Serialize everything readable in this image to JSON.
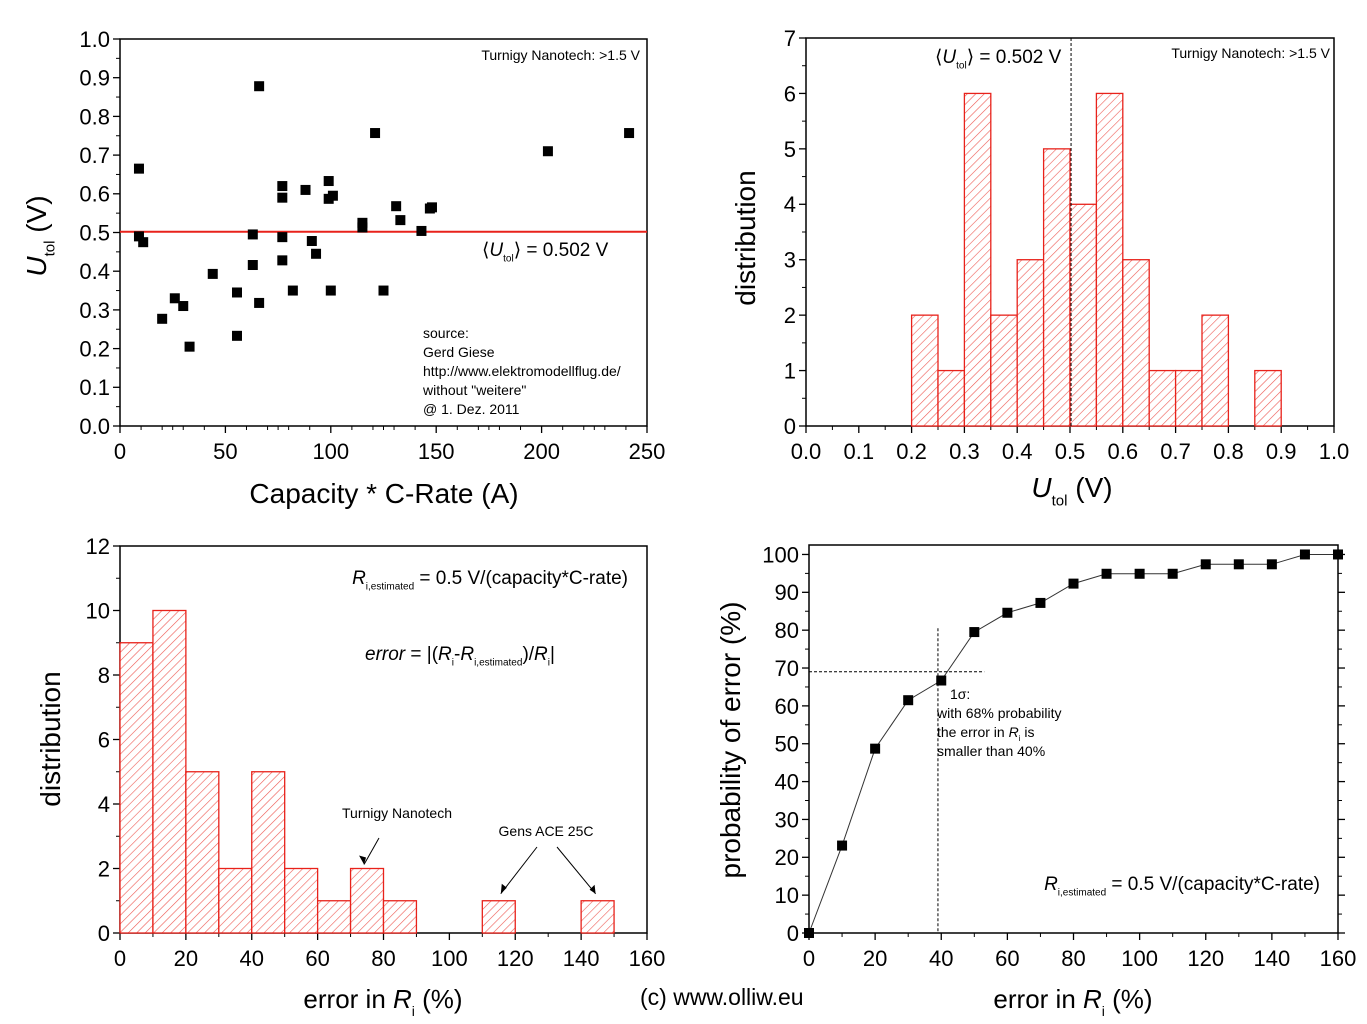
{
  "footer": "(c) www.olliw.eu",
  "chart_data": [
    {
      "id": "scatter",
      "type": "scatter",
      "title": "",
      "xlabel": "Capacity * C-Rate (A)",
      "ylabel_main": "U",
      "ylabel_sub": "tol",
      "ylabel_unit": " (V)",
      "xlim": [
        0,
        250
      ],
      "ylim": [
        0,
        1.0
      ],
      "xticks": [
        0,
        50,
        100,
        150,
        200,
        250
      ],
      "xtick_labels": [
        "0",
        "50",
        "100",
        "150",
        "200",
        "250"
      ],
      "yticks": [
        0,
        0.1,
        0.2,
        0.3,
        0.4,
        0.5,
        0.6,
        0.7,
        0.8,
        0.9,
        1.0
      ],
      "ytick_labels": [
        "0.0",
        "0.1",
        "0.2",
        "0.3",
        "0.4",
        "0.5",
        "0.6",
        "0.7",
        "0.8",
        "0.9",
        "1.0"
      ],
      "mean_line": {
        "value": 0.502,
        "color": "#e8221b"
      },
      "mean_label": {
        "prefix": "⟨",
        "main": "U",
        "sub": "tol",
        "suffix": "⟩ = 0.502 V"
      },
      "note_top_right": "Turnigy Nanotech: >1.5 V",
      "source_lines": [
        "source:",
        "Gerd Giese",
        "http://www.elektromodellflug.de/",
        "without \"weitere\"",
        "@ 1. Dez. 2011"
      ],
      "marker_color": "#000000",
      "points": [
        [
          9,
          0.665
        ],
        [
          9,
          0.49
        ],
        [
          11,
          0.475
        ],
        [
          20,
          0.277
        ],
        [
          26,
          0.33
        ],
        [
          30,
          0.31
        ],
        [
          33,
          0.205
        ],
        [
          44,
          0.393
        ],
        [
          55.5,
          0.345
        ],
        [
          55.5,
          0.233
        ],
        [
          63,
          0.495
        ],
        [
          63,
          0.416
        ],
        [
          66,
          0.318
        ],
        [
          66,
          0.878
        ],
        [
          77,
          0.62
        ],
        [
          77,
          0.59
        ],
        [
          77,
          0.488
        ],
        [
          77,
          0.428
        ],
        [
          82,
          0.35
        ],
        [
          88,
          0.61
        ],
        [
          91,
          0.478
        ],
        [
          93,
          0.445
        ],
        [
          99,
          0.633
        ],
        [
          99,
          0.587
        ],
        [
          101,
          0.595
        ],
        [
          100,
          0.35
        ],
        [
          115,
          0.525
        ],
        [
          115,
          0.513
        ],
        [
          121,
          0.757
        ],
        [
          125,
          0.35
        ],
        [
          131,
          0.568
        ],
        [
          133,
          0.532
        ],
        [
          143,
          0.504
        ],
        [
          147,
          0.562
        ],
        [
          148,
          0.565
        ],
        [
          203,
          0.71
        ],
        [
          241.5,
          0.757
        ]
      ]
    },
    {
      "id": "hist-utol",
      "type": "bar",
      "title": "",
      "xlabel_main": "U",
      "xlabel_sub": "tol",
      "xlabel_unit": " (V)",
      "ylabel": "distribution",
      "xlim": [
        0,
        1.0
      ],
      "ylim": [
        0,
        7
      ],
      "xticks": [
        0,
        0.1,
        0.2,
        0.3,
        0.4,
        0.5,
        0.6,
        0.7,
        0.8,
        0.9,
        1.0
      ],
      "xtick_labels": [
        "0.0",
        "0.1",
        "0.2",
        "0.3",
        "0.4",
        "0.5",
        "0.6",
        "0.7",
        "0.8",
        "0.9",
        "1.0"
      ],
      "yticks": [
        0,
        1,
        2,
        3,
        4,
        5,
        6,
        7
      ],
      "ytick_labels": [
        "0",
        "1",
        "2",
        "3",
        "4",
        "5",
        "6",
        "7"
      ],
      "bin_width": 0.05,
      "bins": [
        [
          0.2,
          2
        ],
        [
          0.25,
          1
        ],
        [
          0.3,
          6
        ],
        [
          0.35,
          2
        ],
        [
          0.4,
          3
        ],
        [
          0.45,
          5
        ],
        [
          0.5,
          4
        ],
        [
          0.55,
          6
        ],
        [
          0.6,
          3
        ],
        [
          0.65,
          1
        ],
        [
          0.7,
          1
        ],
        [
          0.75,
          2
        ],
        [
          0.85,
          1
        ]
      ],
      "bar_color": "#e8221b",
      "mean_line": {
        "value": 0.502,
        "style": "dashed"
      },
      "mean_label": {
        "prefix": "⟨",
        "main": "U",
        "sub": "tol",
        "suffix": "⟩ = 0.502 V"
      },
      "note_top_right": "Turnigy Nanotech: >1.5 V"
    },
    {
      "id": "hist-error",
      "type": "bar",
      "title": "",
      "xlabel_pre": "error in ",
      "xlabel_main": "R",
      "xlabel_sub": "i",
      "xlabel_unit": " (%)",
      "ylabel": "distribution",
      "xlim": [
        0,
        160
      ],
      "ylim": [
        0,
        12
      ],
      "xticks": [
        0,
        20,
        40,
        60,
        80,
        100,
        120,
        140,
        160
      ],
      "xtick_labels": [
        "0",
        "20",
        "40",
        "60",
        "80",
        "100",
        "120",
        "140",
        "160"
      ],
      "yticks": [
        0,
        2,
        4,
        6,
        8,
        10,
        12
      ],
      "ytick_labels": [
        "0",
        "2",
        "4",
        "6",
        "8",
        "10",
        "12"
      ],
      "bin_width": 10,
      "bins": [
        [
          0,
          9
        ],
        [
          10,
          10
        ],
        [
          20,
          5
        ],
        [
          30,
          2
        ],
        [
          40,
          5
        ],
        [
          50,
          2
        ],
        [
          60,
          1
        ],
        [
          70,
          2
        ],
        [
          80,
          1
        ],
        [
          110,
          1
        ],
        [
          140,
          1
        ]
      ],
      "bar_color": "#e8221b",
      "formula1": {
        "main": "R",
        "sub": "i,estimated",
        "rest": " = 0.5 V/(capacity*C-rate)"
      },
      "formula2": {
        "italic": "error",
        "a": " = |(",
        "r1": "R",
        "s1": "i",
        "dash": "-",
        "r2": "R",
        "s2": "i,estimated",
        "b": ")/",
        "r3": "R",
        "s3": "i",
        "c": "|"
      },
      "annotations": [
        {
          "text": "Turnigy Nanotech",
          "target": [
            75,
            2
          ]
        },
        {
          "text": "Gens ACE 25C",
          "targets": [
            [
              115,
              1
            ],
            [
              145,
              1
            ]
          ]
        }
      ]
    },
    {
      "id": "cdf-error",
      "type": "line",
      "title": "",
      "xlabel_pre": "error in ",
      "xlabel_main": "R",
      "xlabel_sub": "i",
      "xlabel_unit": " (%)",
      "ylabel": "probability of error (%)",
      "xlim": [
        0,
        160
      ],
      "ylim": [
        0,
        102.5
      ],
      "xticks": [
        0,
        20,
        40,
        60,
        80,
        100,
        120,
        140,
        160
      ],
      "xtick_labels": [
        "0",
        "20",
        "40",
        "60",
        "80",
        "100",
        "120",
        "140",
        "160"
      ],
      "yticks": [
        0,
        10,
        20,
        30,
        40,
        50,
        60,
        70,
        80,
        90,
        100
      ],
      "ytick_labels": [
        "0",
        "10",
        "20",
        "30",
        "40",
        "50",
        "60",
        "70",
        "80",
        "90",
        "100"
      ],
      "x": [
        0,
        10,
        20,
        30,
        40,
        50,
        60,
        70,
        80,
        90,
        100,
        110,
        120,
        130,
        140,
        150,
        160
      ],
      "y": [
        0,
        23.1,
        48.7,
        61.5,
        66.7,
        79.5,
        84.6,
        87.2,
        92.3,
        94.9,
        94.9,
        94.9,
        97.4,
        97.4,
        97.4,
        100,
        100
      ],
      "guide_x": 39,
      "guide_y": 69,
      "sigma_note": {
        "l1": "1σ:",
        "l2": "with 68% probability",
        "l3a": "the error in ",
        "l3r": "R",
        "l3s": "i",
        "l3b": " is",
        "l4": "smaller than 40%"
      },
      "formula": {
        "main": "R",
        "sub": "i,estimated",
        "rest": " = 0.5 V/(capacity*C-rate)"
      }
    }
  ]
}
